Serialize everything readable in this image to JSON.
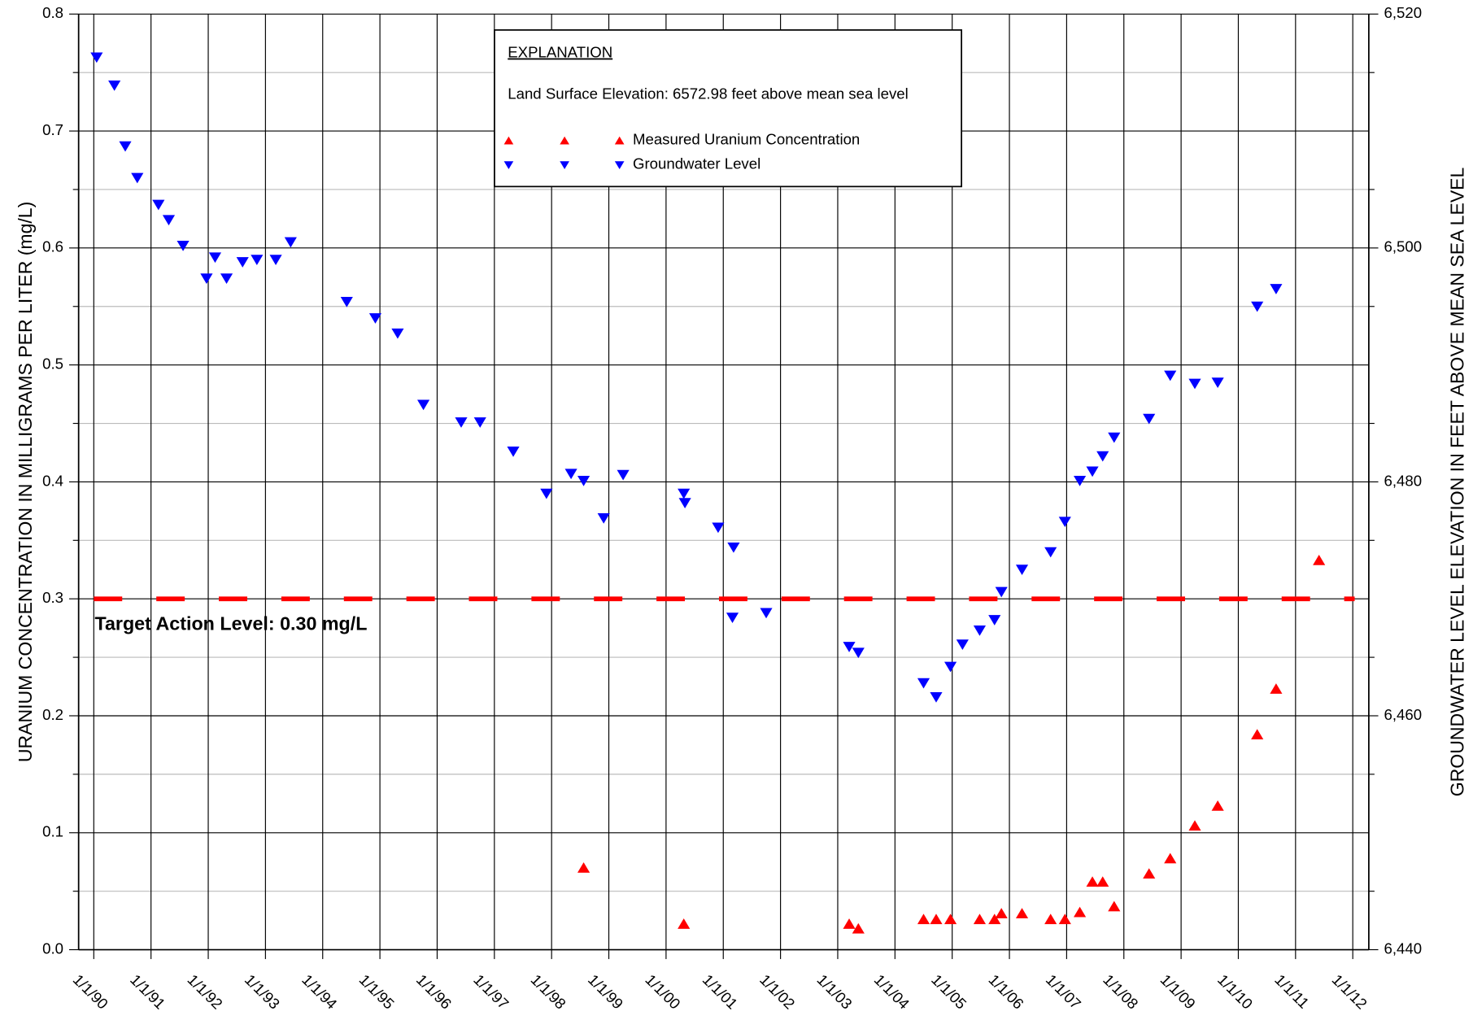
{
  "chart_data": {
    "type": "scatter",
    "y_label": "URANIUM CONCENTRATION IN MILLIGRAMS PER LITER (mg/L)",
    "y2_label": "GROUNDWATER LEVEL ELEVATION IN FEET ABOVE MEAN SEA LEVEL",
    "legend_title": "EXPLANATION",
    "legend_note": "Land Surface Elevation:  6572.98 feet above mean sea level",
    "annotation": {
      "text": "Target Action Level: 0.30 mg/L",
      "value": 0.3,
      "color": "#ff0000"
    },
    "xlim": [
      1989.735,
      2012.28
    ],
    "xticks": [
      {
        "value": 1990,
        "label": "1/1/90"
      },
      {
        "value": 1991,
        "label": "1/1/91"
      },
      {
        "value": 1992,
        "label": "1/1/92"
      },
      {
        "value": 1993,
        "label": "1/1/93"
      },
      {
        "value": 1994,
        "label": "1/1/94"
      },
      {
        "value": 1995,
        "label": "1/1/95"
      },
      {
        "value": 1996,
        "label": "1/1/96"
      },
      {
        "value": 1997,
        "label": "1/1/97"
      },
      {
        "value": 1998,
        "label": "1/1/98"
      },
      {
        "value": 1999,
        "label": "1/1/99"
      },
      {
        "value": 2000,
        "label": "1/1/00"
      },
      {
        "value": 2001,
        "label": "1/1/01"
      },
      {
        "value": 2002,
        "label": "1/1/02"
      },
      {
        "value": 2003,
        "label": "1/1/03"
      },
      {
        "value": 2004,
        "label": "1/1/04"
      },
      {
        "value": 2005,
        "label": "1/1/05"
      },
      {
        "value": 2006,
        "label": "1/1/06"
      },
      {
        "value": 2007,
        "label": "1/1/07"
      },
      {
        "value": 2008,
        "label": "1/1/08"
      },
      {
        "value": 2009,
        "label": "1/1/09"
      },
      {
        "value": 2010,
        "label": "1/1/10"
      },
      {
        "value": 2011,
        "label": "1/1/11"
      },
      {
        "value": 2012,
        "label": "1/1/12"
      }
    ],
    "ylim": [
      0,
      0.8
    ],
    "yticks": [
      {
        "value": 0,
        "label": "0.0"
      },
      0.1,
      0.2,
      0.3,
      0.4,
      0.5,
      0.6,
      0.7,
      0.8
    ],
    "minor_yticks": [
      0.05,
      0.15,
      0.25,
      0.35,
      0.45,
      0.55,
      0.65,
      0.75
    ],
    "y2lim": [
      6440,
      6520
    ],
    "y2ticks": [
      {
        "value": 6440,
        "label": "6,440"
      },
      {
        "value": 6460,
        "label": "6,460"
      },
      {
        "value": 6480,
        "label": "6,480"
      },
      {
        "value": 6500,
        "label": "6,500"
      },
      {
        "value": 6520,
        "label": "6,520"
      }
    ],
    "grid": true,
    "series": [
      {
        "name": "Measured Uranium Concentration",
        "color": "#ff0000",
        "marker": "triangle-up",
        "x": [
          1998.56,
          2000.31,
          2003.2,
          2003.36,
          2004.5,
          2004.72,
          2004.97,
          2005.48,
          2005.74,
          2005.86,
          2006.22,
          2006.72,
          2006.97,
          2007.23,
          2007.45,
          2007.63,
          2007.83,
          2008.44,
          2008.81,
          2009.24,
          2009.64,
          2010.33,
          2010.66,
          2011.41
        ],
        "values": [
          0.07,
          0.022,
          0.022,
          0.018,
          0.026,
          0.026,
          0.026,
          0.026,
          0.026,
          0.031,
          0.031,
          0.026,
          0.026,
          0.032,
          0.058,
          0.058,
          0.037,
          0.065,
          0.078,
          0.106,
          0.123,
          0.184,
          0.223,
          0.333
        ]
      },
      {
        "name": "Groundwater Level",
        "color": "#0000ff",
        "marker": "triangle-down",
        "axis": "y2",
        "x": [
          1990.05,
          1990.36,
          1990.55,
          1990.76,
          1991.13,
          1991.31,
          1991.56,
          1991.97,
          1992.12,
          1992.32,
          1992.6,
          1992.85,
          1993.18,
          1993.44,
          1994.42,
          1994.92,
          1995.31,
          1995.76,
          1996.42,
          1996.75,
          1997.33,
          1997.91,
          1998.34,
          1998.56,
          1998.91,
          1999.25,
          2000.31,
          2000.33,
          2000.91,
          2001.18,
          2001.16,
          2001.75,
          2003.2,
          2003.36,
          2004.5,
          2004.72,
          2004.97,
          2005.18,
          2005.48,
          2005.74,
          2005.86,
          2006.22,
          2006.72,
          2006.97,
          2007.23,
          2007.45,
          2007.63,
          2007.83,
          2008.44,
          2008.81,
          2009.24,
          2009.64,
          2010.33,
          2010.66
        ],
        "values": [
          6516.3,
          6513.9,
          6508.7,
          6506.0,
          6503.7,
          6502.4,
          6500.2,
          6497.4,
          6499.2,
          6497.4,
          6498.8,
          6499.0,
          6499.0,
          6500.5,
          6495.4,
          6494.0,
          6492.7,
          6486.6,
          6485.1,
          6485.1,
          6482.6,
          6479.0,
          6480.7,
          6480.1,
          6476.9,
          6480.6,
          6479.0,
          6478.2,
          6476.1,
          6474.4,
          6468.4,
          6468.8,
          6465.9,
          6465.4,
          6462.8,
          6461.6,
          6464.2,
          6466.1,
          6467.3,
          6468.2,
          6470.6,
          6472.5,
          6474.0,
          6476.6,
          6480.1,
          6480.9,
          6482.2,
          6483.8,
          6485.4,
          6489.1,
          6488.4,
          6488.5,
          6495.0,
          6496.5
        ]
      }
    ]
  }
}
